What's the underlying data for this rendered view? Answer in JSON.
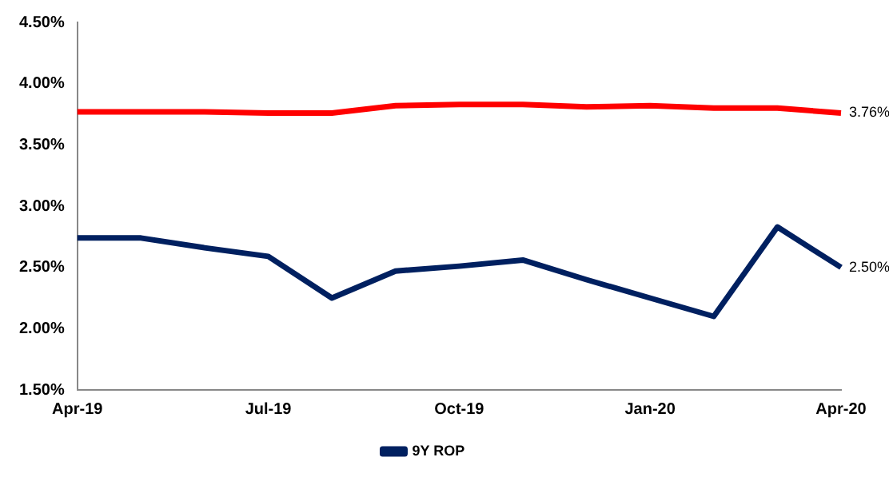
{
  "chart_data": {
    "type": "line",
    "categories": [
      "Apr-19",
      null,
      null,
      "Jul-19",
      null,
      null,
      "Oct-19",
      null,
      null,
      "Jan-20",
      null,
      null,
      "Apr-20"
    ],
    "series": [
      {
        "color": "#ff0000",
        "values": [
          3.77,
          3.77,
          3.77,
          3.76,
          3.76,
          3.82,
          3.83,
          3.83,
          3.81,
          3.82,
          3.8,
          3.8,
          3.76
        ],
        "value_labels": [
          null,
          null,
          null,
          null,
          null,
          null,
          null,
          null,
          null,
          null,
          null,
          null,
          "3.76%"
        ]
      },
      {
        "name": "9Y ROP",
        "color": "#002060",
        "values": [
          2.74,
          2.74,
          2.66,
          2.59,
          2.25,
          2.47,
          2.51,
          2.56,
          2.4,
          2.25,
          2.1,
          2.83,
          2.5
        ],
        "value_labels": [
          null,
          null,
          null,
          null,
          null,
          null,
          null,
          null,
          null,
          null,
          null,
          null,
          "2.50%"
        ]
      }
    ],
    "ylim": [
      1.5,
      4.5
    ],
    "yticks": [
      {
        "value": 1.5,
        "label": "1.50%"
      },
      {
        "value": 2,
        "label": "2.00%"
      },
      {
        "value": 2.5,
        "label": "2.50%"
      },
      {
        "value": 3,
        "label": "3.00%"
      },
      {
        "value": 3.5,
        "label": "3.50%"
      },
      {
        "value": 4,
        "label": "4.00%"
      },
      {
        "value": 4.5,
        "label": "4.50%"
      }
    ],
    "grid": false,
    "legend": "bottom",
    "marker": "none",
    "line_style": "solid"
  }
}
